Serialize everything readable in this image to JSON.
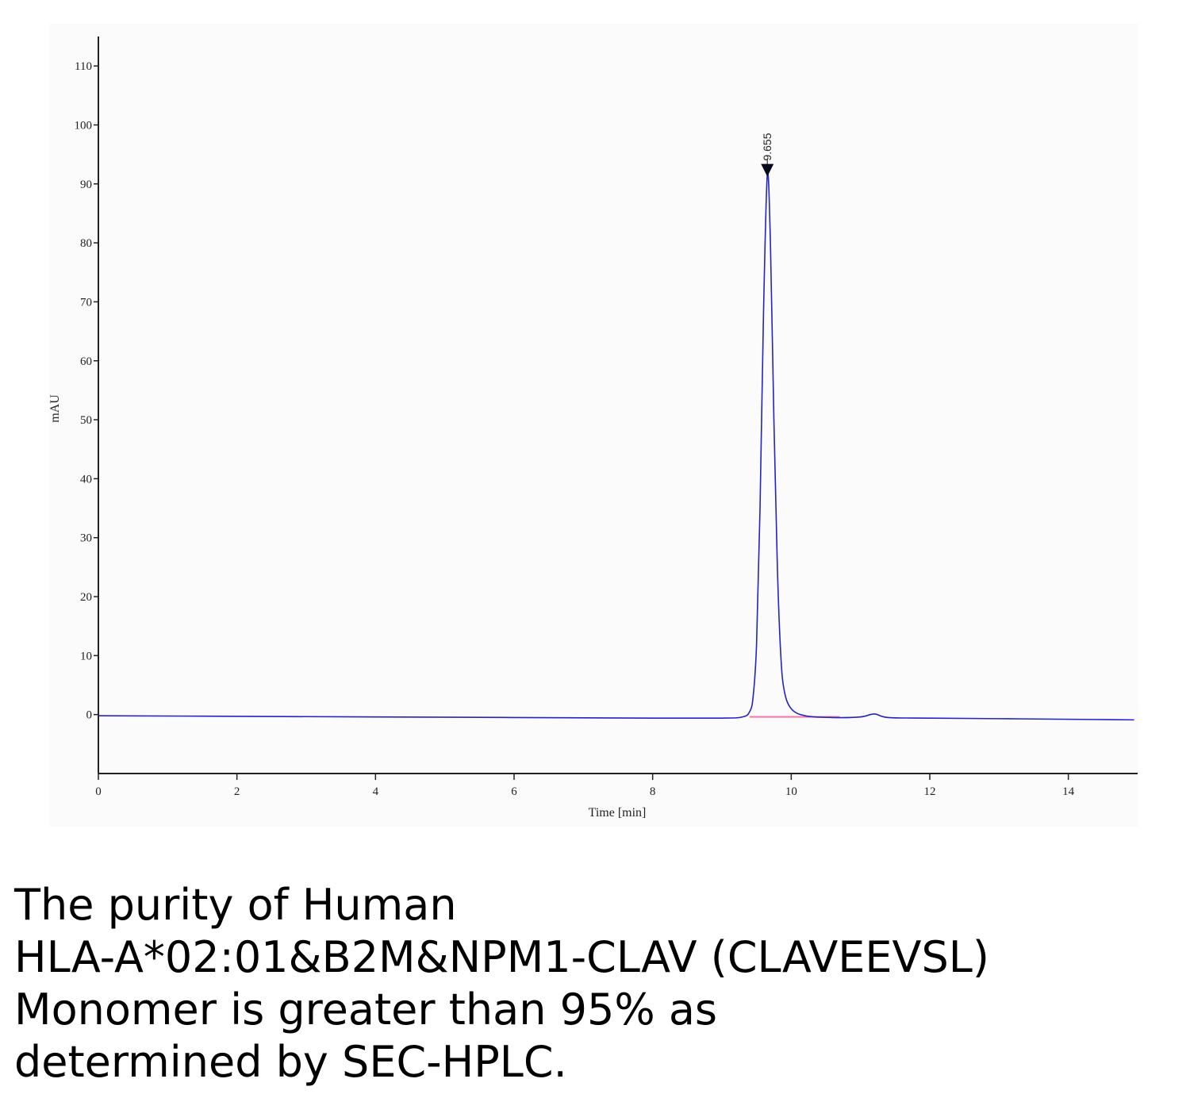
{
  "chart_data": {
    "type": "line",
    "xlabel": "Time [min]",
    "ylabel": "mAU",
    "xlim": [
      0,
      15
    ],
    "ylim": [
      -10,
      115
    ],
    "x_ticks": [
      0,
      2,
      4,
      6,
      8,
      10,
      12,
      14
    ],
    "y_ticks": [
      0,
      10,
      20,
      30,
      40,
      50,
      60,
      70,
      80,
      90,
      100,
      110
    ],
    "grid": false,
    "series": [
      {
        "color": "#2323c8",
        "points": [
          [
            0,
            -0.2
          ],
          [
            2,
            -0.3
          ],
          [
            4,
            -0.4
          ],
          [
            6,
            -0.5
          ],
          [
            8,
            -0.6
          ],
          [
            9.0,
            -0.6
          ],
          [
            9.3,
            -0.4
          ],
          [
            9.4,
            0.5
          ],
          [
            9.45,
            3
          ],
          [
            9.5,
            12
          ],
          [
            9.55,
            35
          ],
          [
            9.6,
            68
          ],
          [
            9.655,
            91.5
          ],
          [
            9.7,
            80
          ],
          [
            9.75,
            50
          ],
          [
            9.8,
            25
          ],
          [
            9.85,
            10
          ],
          [
            9.9,
            4
          ],
          [
            10.0,
            1
          ],
          [
            10.2,
            -0.2
          ],
          [
            10.6,
            -0.5
          ],
          [
            11.0,
            -0.4
          ],
          [
            11.2,
            0.1
          ],
          [
            11.4,
            -0.5
          ],
          [
            12,
            -0.6
          ],
          [
            13,
            -0.7
          ],
          [
            14,
            -0.8
          ],
          [
            14.95,
            -0.9
          ]
        ]
      }
    ],
    "baseline": {
      "color": "#ff6fa8",
      "x_start": 9.4,
      "x_end": 10.7,
      "y": -0.4
    },
    "annotations": [
      {
        "x": 9.655,
        "y": 91.5,
        "text": "9.655",
        "marker": "triangle-down"
      }
    ]
  },
  "caption": {
    "lines": [
      "The purity of Human",
      "HLA-A*02:01&B2M&NPM1-CLAV (CLAVEEVSL)",
      "Monomer is greater than 95% as",
      "determined by SEC-HPLC."
    ]
  }
}
